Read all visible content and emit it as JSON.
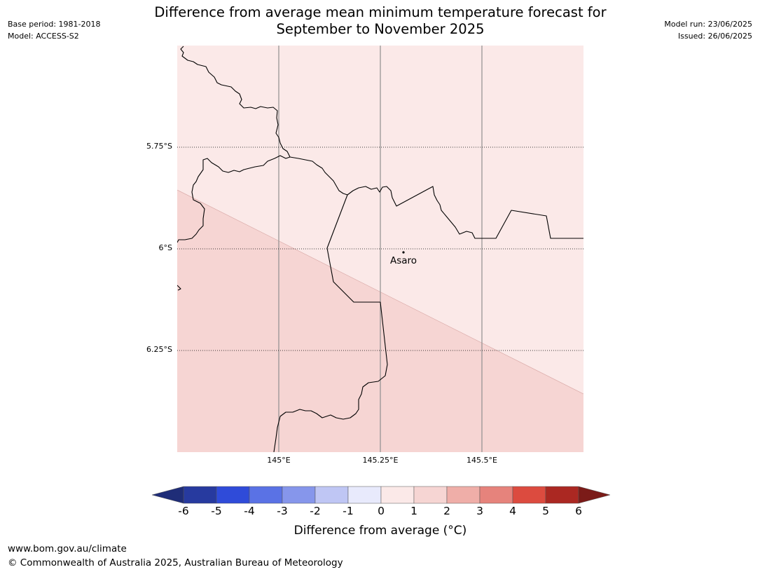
{
  "meta_left": {
    "base_period": "Base period: 1981-2018",
    "model": "Model: ACCESS-S2"
  },
  "meta_right": {
    "model_run": "Model run: 23/06/2025",
    "issued": "Issued: 26/06/2025"
  },
  "title": {
    "line1": "Difference from average mean minimum temperature forecast for",
    "line2": "September to November 2025"
  },
  "map": {
    "lat_labels": [
      "5.75°S",
      "6°S",
      "6.25°S"
    ],
    "lon_labels": [
      "145°E",
      "145.25°E",
      "145.5°E"
    ],
    "place": {
      "name": "Asaro"
    },
    "region_colors": {
      "upper": "#fbe9e8",
      "lower": "#f6d5d3"
    }
  },
  "colorbar": {
    "ticks": [
      "-6",
      "-5",
      "-4",
      "-3",
      "-2",
      "-1",
      "0",
      "1",
      "2",
      "3",
      "4",
      "5",
      "6"
    ],
    "colors": [
      "#273a9f",
      "#2f4bd9",
      "#5a72e5",
      "#8696eb",
      "#bfc6f4",
      "#e8eafc",
      "#fbe9e8",
      "#f6d5d3",
      "#efaea8",
      "#e6837c",
      "#dc4b3f",
      "#ab2822"
    ],
    "under_color": "#1f2d78",
    "over_color": "#7b1b18",
    "label": "Difference from average (°C)"
  },
  "footer": {
    "url": "www.bom.gov.au/climate",
    "copyright": "© Commonwealth of Australia 2025, Australian Bureau of Meteorology"
  }
}
